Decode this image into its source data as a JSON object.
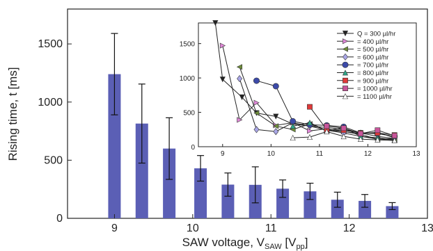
{
  "chart_data": [
    {
      "type": "bar",
      "title": "",
      "xlabel": "SAW voltage, V",
      "xlabel_sub": "SAW",
      "xlabel_unit_open": " [V",
      "xlabel_unit_sub": "pp",
      "xlabel_unit_close": "]",
      "ylabel": "Rising time, t [ms]",
      "xlim": [
        8.4,
        13
      ],
      "ylim": [
        0,
        1800
      ],
      "xticks": [
        "9",
        "10",
        "11",
        "12",
        "13"
      ],
      "yticks": [
        "0",
        "500",
        "1000",
        "1500"
      ],
      "grid": false,
      "bar_color": "#5b5fb5",
      "x": [
        9.0,
        9.35,
        9.7,
        10.1,
        10.45,
        10.8,
        11.15,
        11.5,
        11.85,
        12.2,
        12.55
      ],
      "values": [
        1240,
        815,
        600,
        430,
        290,
        288,
        255,
        232,
        160,
        150,
        105
      ],
      "error": [
        350,
        340,
        265,
        110,
        100,
        155,
        75,
        70,
        65,
        55,
        30
      ]
    },
    {
      "type": "line",
      "title": "",
      "xlim": [
        8.5,
        13
      ],
      "ylim": [
        0,
        1800
      ],
      "xticks": [
        "9",
        "10",
        "11",
        "12",
        "13"
      ],
      "yticks": [
        "0",
        "500",
        "1000",
        "1500"
      ],
      "legend_position": "top-right",
      "series": [
        {
          "name": "Q = 300 µl/hr",
          "color": "#222222",
          "marker": "triangle-down",
          "x": [
            8.85,
            9.0,
            9.4,
            9.7,
            10.1,
            10.45,
            10.8,
            11.15,
            11.5,
            11.85,
            12.2,
            12.55
          ],
          "y": [
            1800,
            980,
            720,
            490,
            440,
            330,
            300,
            280,
            250,
            200,
            150,
            120
          ]
        },
        {
          "name": "= 400 µl/hr",
          "color": "#e088d8",
          "marker": "triangle-right",
          "x": [
            9.0,
            9.35,
            9.7,
            10.1,
            10.45,
            10.8,
            11.15,
            11.5,
            11.85,
            12.2,
            12.55
          ],
          "y": [
            1470,
            390,
            640,
            310,
            350,
            230,
            260,
            220,
            190,
            210,
            130
          ]
        },
        {
          "name": "= 500 µl/hr",
          "color": "#6f8e3a",
          "marker": "triangle-left",
          "x": [
            9.35,
            9.7,
            10.1,
            10.45,
            10.8,
            11.15,
            11.5,
            11.85,
            12.2,
            12.55
          ],
          "y": [
            1160,
            490,
            300,
            250,
            330,
            240,
            220,
            180,
            110,
            100
          ]
        },
        {
          "name": "= 600 µl/hr",
          "color": "#a9a6e6",
          "marker": "diamond",
          "x": [
            9.35,
            9.7,
            10.1,
            10.45,
            10.8,
            11.15,
            11.5,
            11.85,
            12.2,
            12.55
          ],
          "y": [
            990,
            250,
            220,
            350,
            300,
            240,
            200,
            150,
            110,
            120
          ]
        },
        {
          "name": "= 700 µl/hr",
          "color": "#3c4aa8",
          "marker": "circle",
          "x": [
            9.7,
            10.1,
            10.45,
            10.8,
            11.15,
            11.5,
            11.85,
            12.2,
            12.55
          ],
          "y": [
            960,
            880,
            370,
            320,
            310,
            290,
            200,
            190,
            150
          ]
        },
        {
          "name": "= 800 µl/hr",
          "color": "#2ea88a",
          "marker": "triangle-up",
          "x": [
            10.45,
            10.8,
            11.15,
            11.5,
            11.85,
            12.2,
            12.55
          ],
          "y": [
            300,
            350,
            230,
            280,
            150,
            130,
            100
          ]
        },
        {
          "name": "= 900 µl/hr",
          "color": "#e03a3a",
          "marker": "square",
          "x": [
            10.8,
            11.15,
            11.5,
            11.85,
            12.2,
            12.55
          ],
          "y": [
            580,
            250,
            240,
            200,
            200,
            170
          ]
        },
        {
          "name": "= 1000 µl/hr",
          "color": "#c8559a",
          "marker": "square",
          "x": [
            11.15,
            11.5,
            11.85,
            12.2,
            12.55
          ],
          "y": [
            300,
            270,
            190,
            240,
            160
          ]
        },
        {
          "name": "= 1100 µl/hr",
          "color": "#8fb8cf",
          "marker": "triangle-up-open",
          "x": [
            10.45,
            10.8,
            11.15,
            11.5,
            11.85,
            12.2,
            12.55
          ],
          "y": [
            130,
            140,
            220,
            150,
            110,
            100,
            90
          ]
        }
      ]
    }
  ]
}
